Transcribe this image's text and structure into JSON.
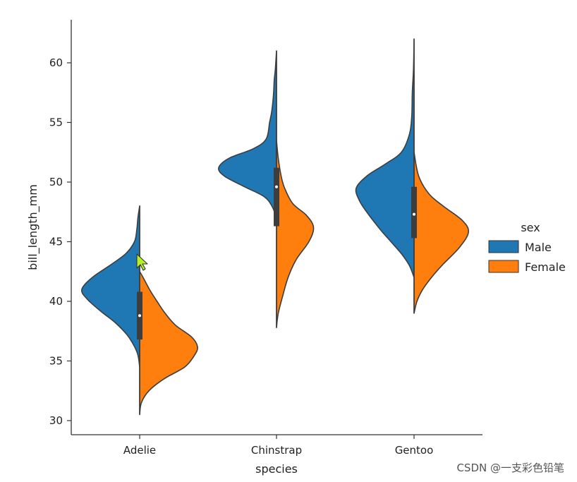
{
  "chart_data": {
    "type": "violin",
    "split": true,
    "title": "",
    "xlabel": "species",
    "ylabel": "bill_length_mm",
    "categories": [
      "Adelie",
      "Chinstrap",
      "Gentoo"
    ],
    "y_ticks": [
      30,
      35,
      40,
      45,
      50,
      55,
      60
    ],
    "ylim": [
      29,
      63.5
    ],
    "legend": {
      "title": "sex",
      "placement": "center-right",
      "entries": [
        {
          "name": "Male",
          "color": "#1f77b4"
        },
        {
          "name": "Female",
          "color": "#ff7f0e"
        }
      ]
    },
    "series": [
      {
        "name": "Male",
        "color": "#1f77b4",
        "side": "left",
        "violins": [
          {
            "category": "Adelie",
            "range": [
              34.5,
              48.0
            ],
            "profile": [
              [
                34.5,
                0
              ],
              [
                35.5,
                0.03
              ],
              [
                36.3,
                0.1
              ],
              [
                37.2,
                0.22
              ],
              [
                38.2,
                0.42
              ],
              [
                39.2,
                0.68
              ],
              [
                40.2,
                0.91
              ],
              [
                41.0,
                1.0
              ],
              [
                42.0,
                0.82
              ],
              [
                43.0,
                0.52
              ],
              [
                44.0,
                0.24
              ],
              [
                45.0,
                0.09
              ],
              [
                46.0,
                0.05
              ],
              [
                47.0,
                0.03
              ],
              [
                48.0,
                0
              ]
            ]
          },
          {
            "category": "Chinstrap",
            "range": [
              47.0,
              61.0
            ],
            "profile": [
              [
                47.0,
                0
              ],
              [
                48.0,
                0.08
              ],
              [
                48.8,
                0.22
              ],
              [
                49.6,
                0.55
              ],
              [
                50.5,
                0.9
              ],
              [
                51.2,
                1.0
              ],
              [
                52.0,
                0.82
              ],
              [
                52.8,
                0.4
              ],
              [
                53.6,
                0.18
              ],
              [
                55.0,
                0.12
              ],
              [
                56.0,
                0.08
              ],
              [
                57.5,
                0.05
              ],
              [
                58.5,
                0.04
              ],
              [
                59.5,
                0.02
              ],
              [
                61.0,
                0
              ]
            ]
          },
          {
            "category": "Gentoo",
            "range": [
              42.0,
              62.0
            ],
            "profile": [
              [
                42.0,
                0
              ],
              [
                43.0,
                0.08
              ],
              [
                44.0,
                0.22
              ],
              [
                45.0,
                0.4
              ],
              [
                46.0,
                0.58
              ],
              [
                47.5,
                0.82
              ],
              [
                48.5,
                0.95
              ],
              [
                49.5,
                1.0
              ],
              [
                50.5,
                0.82
              ],
              [
                51.5,
                0.5
              ],
              [
                52.5,
                0.22
              ],
              [
                54.0,
                0.08
              ],
              [
                55.5,
                0.04
              ],
              [
                57.5,
                0.03
              ],
              [
                59.5,
                0.01
              ],
              [
                62.0,
                0
              ]
            ]
          }
        ]
      },
      {
        "name": "Female",
        "color": "#ff7f0e",
        "side": "right",
        "violins": [
          {
            "category": "Adelie",
            "range": [
              30.5,
              42.5
            ],
            "profile": [
              [
                30.5,
                0
              ],
              [
                31.5,
                0.03
              ],
              [
                32.5,
                0.16
              ],
              [
                33.5,
                0.42
              ],
              [
                34.5,
                0.78
              ],
              [
                35.5,
                0.95
              ],
              [
                36.2,
                1.0
              ],
              [
                37.0,
                0.9
              ],
              [
                38.0,
                0.62
              ],
              [
                39.0,
                0.44
              ],
              [
                40.0,
                0.3
              ],
              [
                41.0,
                0.17
              ],
              [
                42.0,
                0.06
              ],
              [
                42.5,
                0
              ]
            ]
          },
          {
            "category": "Chinstrap",
            "range": [
              37.8,
              53.5
            ],
            "profile": [
              [
                37.8,
                0
              ],
              [
                39.0,
                0.03
              ],
              [
                40.5,
                0.11
              ],
              [
                42.0,
                0.2
              ],
              [
                43.5,
                0.34
              ],
              [
                45.0,
                0.56
              ],
              [
                46.2,
                0.64
              ],
              [
                47.2,
                0.52
              ],
              [
                48.2,
                0.28
              ],
              [
                49.5,
                0.14
              ],
              [
                50.5,
                0.08
              ],
              [
                52.0,
                0.03
              ],
              [
                53.5,
                0
              ]
            ]
          },
          {
            "category": "Gentoo",
            "range": [
              39.0,
              52.5
            ],
            "profile": [
              [
                39.0,
                0
              ],
              [
                40.0,
                0.05
              ],
              [
                41.0,
                0.15
              ],
              [
                42.0,
                0.3
              ],
              [
                43.0,
                0.48
              ],
              [
                44.5,
                0.78
              ],
              [
                45.8,
                0.94
              ],
              [
                46.8,
                0.83
              ],
              [
                48.0,
                0.5
              ],
              [
                49.0,
                0.26
              ],
              [
                50.5,
                0.08
              ],
              [
                52.5,
                0
              ]
            ]
          }
        ]
      }
    ],
    "inner_box": [
      {
        "category": "Adelie",
        "q1": 36.8,
        "median": 38.8,
        "q3": 40.8
      },
      {
        "category": "Chinstrap",
        "q1": 46.3,
        "median": 49.6,
        "q3": 51.2
      },
      {
        "category": "Gentoo",
        "q1": 45.3,
        "median": 47.3,
        "q3": 49.6
      }
    ]
  },
  "watermark": "CSDN @一支彩色铅笔"
}
